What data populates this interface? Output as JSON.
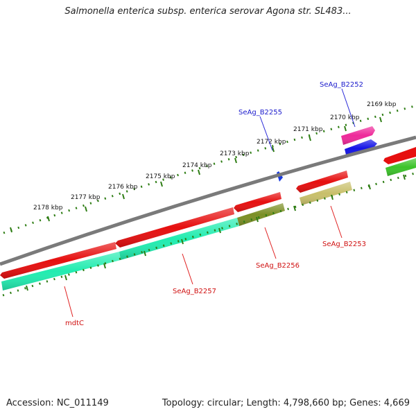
{
  "title": "Salmonella enterica subsp. enterica serovar Agona str. SL483...",
  "accession": "Accession: NC_011149",
  "summary": "Topology: circular; Length: 4,798,660 bp; Genes: 4,669",
  "colors": {
    "backbone": "#7a7a7a",
    "tick": "#2e7d14",
    "forward_label": "#1a1acc",
    "reverse_label": "#d01010",
    "connector_forward": "#2a2ad8",
    "connector_reverse": "#e02020"
  },
  "scale": {
    "ticks": [
      {
        "label": "2169 kbp"
      },
      {
        "label": "2170 kbp"
      },
      {
        "label": "2171 kbp"
      },
      {
        "label": "2172 kbp"
      },
      {
        "label": "2173 kbp"
      },
      {
        "label": "2174 kbp"
      },
      {
        "label": "2175 kbp"
      },
      {
        "label": "2176 kbp"
      },
      {
        "label": "2177 kbp"
      },
      {
        "label": "2178 kbp"
      }
    ]
  },
  "gene_labels": [
    {
      "name": "SeAg_B2252",
      "strand": "forward"
    },
    {
      "name": "SeAg_B2255",
      "strand": "forward"
    },
    {
      "name": "SeAg_B2253",
      "strand": "reverse"
    },
    {
      "name": "SeAg_B2256",
      "strand": "reverse"
    },
    {
      "name": "SeAg_B2257",
      "strand": "reverse"
    },
    {
      "name": "mdtC",
      "strand": "reverse"
    }
  ],
  "features": [
    {
      "id": "f-magenta",
      "color": "#ee2a9a"
    },
    {
      "id": "f-blue-large",
      "color": "#1414e6"
    },
    {
      "id": "f-blue-small",
      "color": "#1a3bdd"
    },
    {
      "id": "f-red-1",
      "color": "#e60f0f"
    },
    {
      "id": "f-red-2",
      "color": "#e60f0f"
    },
    {
      "id": "f-red-3",
      "color": "#e60f0f"
    },
    {
      "id": "f-red-4",
      "color": "#e60f0f"
    },
    {
      "id": "f-red-5",
      "color": "#e60f0f"
    },
    {
      "id": "f-teal",
      "color": "#22ecb0"
    },
    {
      "id": "f-olive",
      "color": "#7b8f25"
    },
    {
      "id": "f-khaki",
      "color": "#c8bf6a"
    },
    {
      "id": "f-green",
      "color": "#3cc32a"
    }
  ]
}
